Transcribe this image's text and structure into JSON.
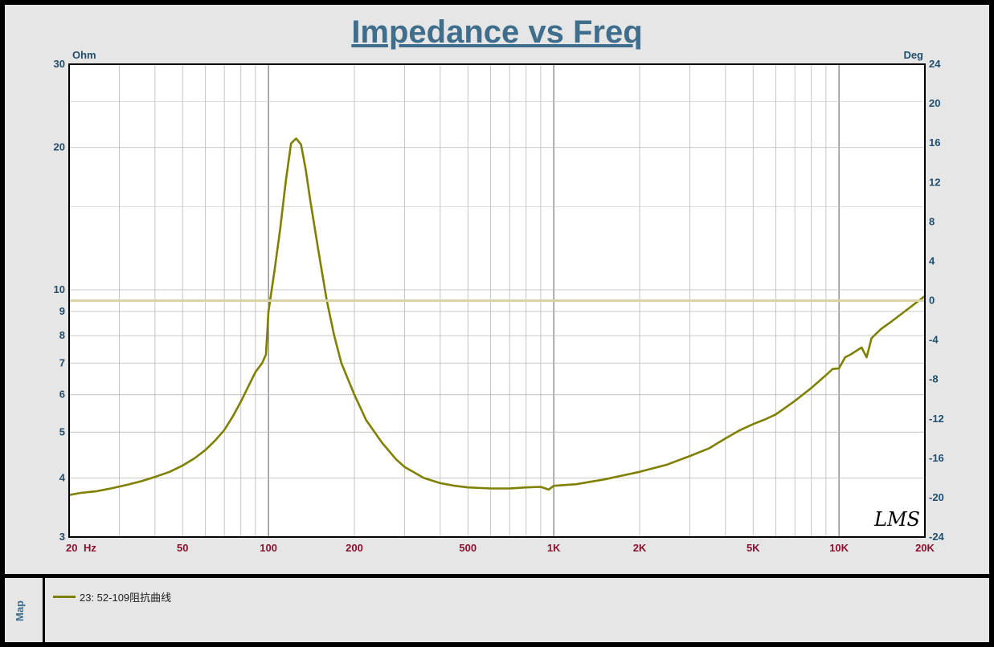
{
  "title": "Impedance vs Freq",
  "map_label": "Map",
  "watermark": "LMS",
  "legend": {
    "label": "23: 52-109阻抗曲线"
  },
  "colors": {
    "curve": "#808000",
    "zero_line": "#d8d3a8",
    "title": "#3f6d8c",
    "y_tick": "#1f4e6e",
    "x_tick": "#8b1030"
  },
  "chart_data": {
    "type": "line",
    "title": "Impedance vs Freq",
    "x_scale": "log",
    "y_scale": "log",
    "y_unit": "Ohm",
    "y2_unit": "Deg",
    "x_unit": "Hz",
    "xlim": [
      20,
      20000
    ],
    "ylim": [
      3,
      30
    ],
    "y2lim": [
      -24,
      24
    ],
    "grid": true,
    "x_tick_labels": [
      {
        "value": 20,
        "label": "20"
      },
      {
        "value": 50,
        "label": "50"
      },
      {
        "value": 100,
        "label": "100"
      },
      {
        "value": 200,
        "label": "200"
      },
      {
        "value": 500,
        "label": "500"
      },
      {
        "value": 1000,
        "label": "1K"
      },
      {
        "value": 2000,
        "label": "2K"
      },
      {
        "value": 5000,
        "label": "5K"
      },
      {
        "value": 10000,
        "label": "10K"
      },
      {
        "value": 20000,
        "label": "20K"
      }
    ],
    "y_tick_labels": [
      {
        "value": 30,
        "label": "30"
      },
      {
        "value": 20,
        "label": "20"
      },
      {
        "value": 10,
        "label": "10"
      },
      {
        "value": 9,
        "label": "9"
      },
      {
        "value": 8,
        "label": "8"
      },
      {
        "value": 7,
        "label": "7"
      },
      {
        "value": 6,
        "label": "6"
      },
      {
        "value": 5,
        "label": "5"
      },
      {
        "value": 4,
        "label": "4"
      },
      {
        "value": 3,
        "label": "3"
      }
    ],
    "y2_tick_labels": [
      {
        "value": 24,
        "label": "24"
      },
      {
        "value": 20,
        "label": "20"
      },
      {
        "value": 16,
        "label": "16"
      },
      {
        "value": 12,
        "label": "12"
      },
      {
        "value": 8,
        "label": "8"
      },
      {
        "value": 4,
        "label": "4"
      },
      {
        "value": 0,
        "label": "0"
      },
      {
        "value": -4,
        "label": "-4"
      },
      {
        "value": -8,
        "label": "-8"
      },
      {
        "value": -12,
        "label": "-12"
      },
      {
        "value": -16,
        "label": "-16"
      },
      {
        "value": -20,
        "label": "-20"
      },
      {
        "value": -24,
        "label": "-24"
      }
    ],
    "series": [
      {
        "name": "23: 52-109阻抗曲线",
        "axis": "left",
        "points": [
          [
            20,
            3.68
          ],
          [
            22,
            3.72
          ],
          [
            25,
            3.75
          ],
          [
            28,
            3.8
          ],
          [
            32,
            3.87
          ],
          [
            36,
            3.94
          ],
          [
            40,
            4.02
          ],
          [
            45,
            4.12
          ],
          [
            50,
            4.25
          ],
          [
            55,
            4.4
          ],
          [
            60,
            4.58
          ],
          [
            65,
            4.8
          ],
          [
            70,
            5.05
          ],
          [
            75,
            5.4
          ],
          [
            80,
            5.8
          ],
          [
            85,
            6.25
          ],
          [
            90,
            6.7
          ],
          [
            95,
            7.0
          ],
          [
            98,
            7.3
          ],
          [
            100,
            9.0
          ],
          [
            105,
            11.0
          ],
          [
            110,
            13.5
          ],
          [
            115,
            17.0
          ],
          [
            120,
            20.4
          ],
          [
            125,
            20.9
          ],
          [
            130,
            20.3
          ],
          [
            135,
            18.0
          ],
          [
            140,
            15.5
          ],
          [
            150,
            12.0
          ],
          [
            160,
            9.5
          ],
          [
            170,
            8.0
          ],
          [
            180,
            7.0
          ],
          [
            200,
            6.0
          ],
          [
            220,
            5.3
          ],
          [
            250,
            4.75
          ],
          [
            280,
            4.38
          ],
          [
            300,
            4.22
          ],
          [
            350,
            4.0
          ],
          [
            400,
            3.9
          ],
          [
            450,
            3.85
          ],
          [
            500,
            3.82
          ],
          [
            600,
            3.8
          ],
          [
            700,
            3.8
          ],
          [
            800,
            3.82
          ],
          [
            900,
            3.83
          ],
          [
            960,
            3.78
          ],
          [
            1000,
            3.85
          ],
          [
            1200,
            3.88
          ],
          [
            1500,
            3.97
          ],
          [
            2000,
            4.12
          ],
          [
            2500,
            4.27
          ],
          [
            3000,
            4.45
          ],
          [
            3500,
            4.62
          ],
          [
            4000,
            4.85
          ],
          [
            4500,
            5.05
          ],
          [
            5000,
            5.2
          ],
          [
            5500,
            5.32
          ],
          [
            6000,
            5.45
          ],
          [
            7000,
            5.82
          ],
          [
            8000,
            6.2
          ],
          [
            9000,
            6.6
          ],
          [
            9500,
            6.8
          ],
          [
            10000,
            6.82
          ],
          [
            10500,
            7.2
          ],
          [
            11000,
            7.3
          ],
          [
            12000,
            7.55
          ],
          [
            12500,
            7.2
          ],
          [
            13000,
            7.9
          ],
          [
            14000,
            8.25
          ],
          [
            15000,
            8.5
          ],
          [
            17000,
            9.0
          ],
          [
            20000,
            9.7
          ]
        ]
      },
      {
        "name": "",
        "axis": "right",
        "points": [
          [
            20,
            0
          ],
          [
            20000,
            0
          ]
        ]
      }
    ]
  }
}
